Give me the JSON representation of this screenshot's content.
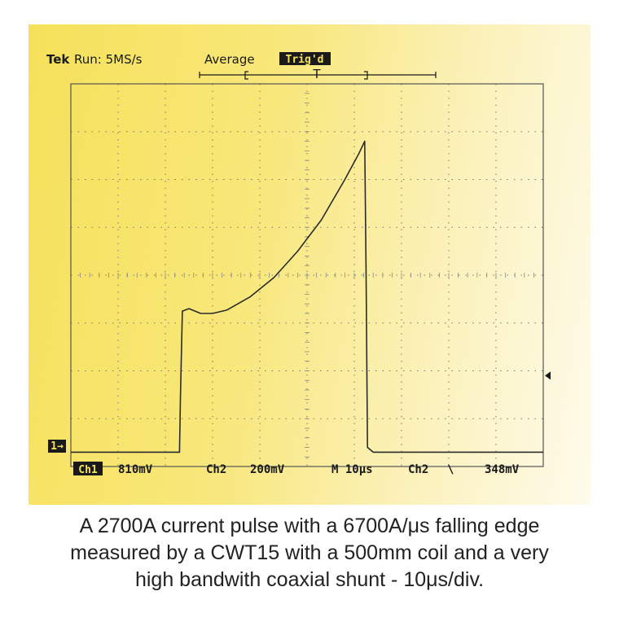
{
  "header": {
    "brand": "Tek",
    "run": "Run: 5MS/s",
    "mode": "Average",
    "trigger_badge": "Trig'd",
    "trigger_marker": "T"
  },
  "status_bar": {
    "ch1_badge": "Ch1",
    "ch1_scale": "810mV",
    "ch2_label": "Ch2",
    "ch2_scale": "200mV",
    "timebase": "M 10μs",
    "trigger_source": "Ch2",
    "trigger_slope": "\\",
    "trigger_level": "348mV"
  },
  "ground_marker": "1→",
  "caption": {
    "line1": "A 2700A current pulse with a 6700A/μs falling edge",
    "line2": "measured by a CWT15 with a 500mm coil and a very",
    "line3": "high bandwith coaxial shunt - 10μs/div."
  },
  "chart_data": {
    "type": "line",
    "title": "",
    "x_unit": "div (10 μs/div)",
    "y_unit": "div (810 mV/div)",
    "xlim": [
      0,
      10
    ],
    "ylim": [
      0,
      8
    ],
    "grid": true,
    "series": [
      {
        "name": "Ch1",
        "x": [
          0,
          2.3,
          2.32,
          2.36,
          2.5,
          2.75,
          3.0,
          3.3,
          3.8,
          4.3,
          4.8,
          5.3,
          5.8,
          6.1,
          6.22,
          6.25,
          6.28,
          6.4,
          7.0,
          10
        ],
        "y": [
          0.3,
          0.3,
          1.5,
          3.25,
          3.3,
          3.2,
          3.2,
          3.27,
          3.55,
          3.95,
          4.5,
          5.15,
          6.0,
          6.55,
          6.8,
          4.0,
          0.4,
          0.3,
          0.3,
          0.3
        ]
      }
    ],
    "trigger_level_div": 1.9
  }
}
